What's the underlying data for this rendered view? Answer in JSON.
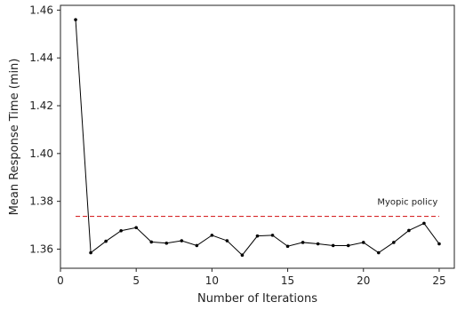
{
  "chart_data": {
    "type": "line",
    "xlabel": "Number of Iterations",
    "ylabel": "Mean Response Time (min)",
    "xlim": [
      0,
      26
    ],
    "ylim": [
      1.352,
      1.462
    ],
    "xticks": [
      0,
      5,
      10,
      15,
      20,
      25
    ],
    "xtick_labels": [
      "0",
      "5",
      "10",
      "15",
      "20",
      "25"
    ],
    "yticks": [
      1.36,
      1.38,
      1.4,
      1.42,
      1.44,
      1.46
    ],
    "ytick_labels": [
      "1.36",
      "1.38",
      "1.40",
      "1.42",
      "1.44",
      "1.46"
    ],
    "grid": false,
    "series": [
      {
        "x": [
          1,
          2,
          3,
          4,
          5,
          6,
          7,
          8,
          9,
          10,
          11,
          12,
          13,
          14,
          15,
          16,
          17,
          18,
          19,
          20,
          21,
          22,
          23,
          24,
          25
        ],
        "values": [
          1.456,
          1.3585,
          1.3633,
          1.3677,
          1.369,
          1.363,
          1.3625,
          1.3635,
          1.3615,
          1.3658,
          1.3635,
          1.3575,
          1.3655,
          1.3658,
          1.3612,
          1.3628,
          1.3622,
          1.3615,
          1.3615,
          1.3628,
          1.3585,
          1.3628,
          1.3678,
          1.3708,
          1.3622
        ],
        "color": "#000000",
        "marker": "dot"
      }
    ],
    "reference_line": {
      "value": 1.3737,
      "x_range": [
        1,
        25
      ],
      "color": "#d62728",
      "style": "dashed",
      "label": "Myopic policy"
    }
  }
}
